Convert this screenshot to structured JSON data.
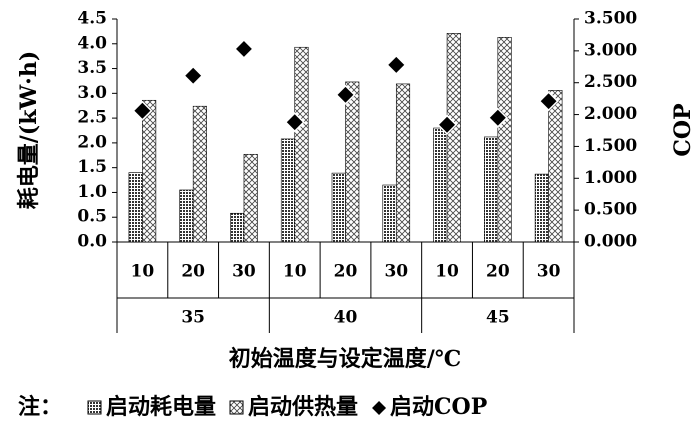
{
  "chart_data": {
    "type": "bar",
    "categories": [
      "10",
      "20",
      "30",
      "10",
      "20",
      "30",
      "10",
      "20",
      "30"
    ],
    "groups": [
      "35",
      "40",
      "45"
    ],
    "xlabel": "初始温度与设定温度/℃",
    "ylabel": "耗电量/(kW·h)",
    "y2label": "COP",
    "legend_prefix": "注：",
    "series": [
      {
        "name": "启动耗电量",
        "type": "bar",
        "pattern": "dots",
        "color": "#000000",
        "values": [
          1.4,
          1.05,
          0.58,
          2.08,
          1.39,
          1.15,
          2.3,
          2.12,
          1.37
        ]
      },
      {
        "name": "启动供热量",
        "type": "bar",
        "pattern": "hatch",
        "color": "#000000",
        "values": [
          2.86,
          2.74,
          1.77,
          3.93,
          3.23,
          3.19,
          4.21,
          4.13,
          3.06
        ]
      },
      {
        "name": "启动COP",
        "type": "scatter",
        "axis": "y2",
        "color": "#000000",
        "values": [
          2.06,
          2.61,
          3.03,
          1.88,
          2.31,
          2.78,
          1.84,
          1.95,
          2.21
        ]
      }
    ],
    "ylim": [
      0,
      4.5
    ],
    "yticks": [
      {
        "value": 0,
        "label": "0.0"
      },
      {
        "value": 0.5,
        "label": "0.5"
      },
      {
        "value": 1,
        "label": "1.0"
      },
      {
        "value": 1.5,
        "label": "1.5"
      },
      {
        "value": 2,
        "label": "2.0"
      },
      {
        "value": 2.5,
        "label": "2.5"
      },
      {
        "value": 3,
        "label": "3.0"
      },
      {
        "value": 3.5,
        "label": "3.5"
      },
      {
        "value": 4,
        "label": "4.0"
      },
      {
        "value": 4.5,
        "label": "4.5"
      }
    ],
    "y2lim": [
      0,
      3.5
    ],
    "y2ticks": [
      {
        "value": 0,
        "label": "0.000"
      },
      {
        "value": 0.5,
        "label": "0.500"
      },
      {
        "value": 1,
        "label": "1.000"
      },
      {
        "value": 1.5,
        "label": "1.500"
      },
      {
        "value": 2,
        "label": "2.000"
      },
      {
        "value": 2.5,
        "label": "2.500"
      },
      {
        "value": 3,
        "label": "3.000"
      },
      {
        "value": 3.5,
        "label": "3.500"
      }
    ]
  }
}
